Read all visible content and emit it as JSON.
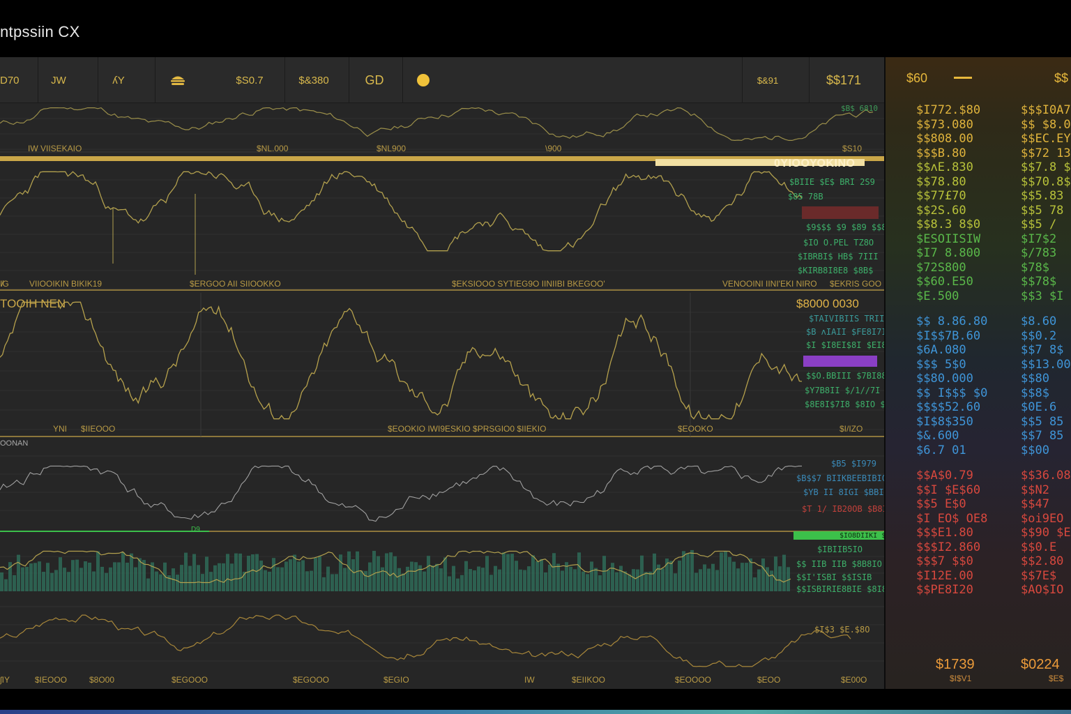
{
  "app": {
    "title": "ntpssiin CX"
  },
  "toolbar": {
    "items": [
      {
        "id": "d70",
        "label": "D70",
        "kind": "text"
      },
      {
        "id": "jw",
        "label": "JW",
        "kind": "text"
      },
      {
        "id": "ny",
        "label": "ʎY",
        "kind": "text"
      },
      {
        "id": "burger",
        "label": "",
        "kind": "icon",
        "icon": "burger-icon"
      },
      {
        "id": "p1",
        "label": "$S0.7",
        "kind": "text"
      },
      {
        "id": "p2",
        "label": "$&380",
        "kind": "text"
      },
      {
        "id": "gd",
        "label": "GD",
        "kind": "text"
      },
      {
        "id": "dot",
        "label": "",
        "kind": "icon",
        "icon": "coin-dot-icon"
      },
      {
        "id": "p3",
        "label": "$&91",
        "kind": "text"
      },
      {
        "id": "p4",
        "label": "$$171",
        "kind": "text"
      }
    ]
  },
  "panels": {
    "p1": {
      "axis_labels": [
        "IW VIISEKAIO",
        "$NL.000",
        "$NL900",
        "\\900",
        "$S10"
      ],
      "right_top": "$B$ 6810"
    },
    "p2": {
      "banner": "0ΥΙΟΟΥΟΚΙΝΟ",
      "axis_labels": [
        "I̸G",
        "VIIOOIKIN BIKIK19",
        "$ERGOO AII SIIOOKKO",
        "$EKSIOOO SYTIEG9O IINIIBI BKEGOO'",
        "VENOOINI IINI'EKI NIRO",
        "$EKRIS GOO"
      ],
      "right_lines": [
        "$BIIE $E$ BRI 2S9",
        "$85  78B",
        "$9$$$ $9 $89 $$8$",
        "$IO O.PEL TZ8O",
        "$IBRBI$ HB$ 7III",
        "$KIRB8I8E8 $8B$"
      ]
    },
    "p3": {
      "title": "TOOIH NEN",
      "price": "$8000 0030",
      "axis_labels": [
        "YNI",
        "$IIEOOO",
        "$EOOKIO IWI9ESKIO $PRSGIO0 $IIEKIO",
        "$EOOKO",
        "$I/IZO"
      ],
      "right_lines": [
        "$TAIVIBIIS TRIIS",
        "$B ʌIAII $FE8I7I8",
        "$I $I8EI$8I $EI8",
        "",
        "$$O.BBIII $7BI88",
        "$Y7B8II $/1//7I EB",
        "$8E8I$7I8 $8IO $8II"
      ]
    },
    "p4": {
      "title": "OONAN",
      "right_lines": [
        "$B5 $I979",
        "$B$$7 BIIKBEEBIBIO",
        "$YB II 8IGI $BBI",
        "$T 1/ IB20OB $B8I0"
      ],
      "marker": "D9"
    },
    "p5": {
      "badge": "$IO8DIIKI $8",
      "right_lines": [
        "$IBIIB5IO",
        "$$ IIB IIB $8B8IO",
        "$$I'ISBI $$ISIB",
        "$$ISBIRIE8BIE $8I8"
      ]
    },
    "p6": {
      "right_top": "$I$3 $E.$8O",
      "axis_labels": [
        "ʃIY",
        "$IEOOO",
        "$8O00",
        "$EGOOO",
        "$EGOOO",
        "$KI",
        "$EGIO",
        "IW",
        "$EIIKOO",
        "$EOOOO",
        "$EOO",
        "$E00O"
      ]
    }
  },
  "side_panel": {
    "header_left": "$60",
    "header_right": "$$",
    "col1": {
      "yellow": [
        "$I772.$80",
        "$$73.080",
        "$$808.00",
        "$$$B.80",
        "$$ʌE.830",
        "$$78.80",
        "$$77£70",
        "$$2S.60",
        "$$8.3 8$0",
        "$ESOIISIW",
        "$I7 8.800",
        "$72S800",
        "$$60.E50",
        "$E.500"
      ],
      "blue": [
        "$$ 8.86.80",
        "$I$$7B.60",
        "$6A.080",
        "$$$ 5$0",
        "$$80.000",
        "$$ I$$$ $0",
        "$$$$52.60",
        "$I$8$350",
        "$&.600",
        "$6.7 01"
      ],
      "red": [
        "$$A$0.79",
        "$$I $E$60",
        "$$5 E$0",
        "$I EO$ OE8",
        "$$$E1.80",
        "$$$I2.860",
        "$$$7 $$0",
        "$I12E.00",
        "$$PE8I20"
      ],
      "footer_price": "$1739",
      "footer_sub": "$I$V1"
    },
    "col2": {
      "yellow": [
        "$$$I0A7",
        "$$ $8.0",
        "$$EC.EY",
        "$$72 13",
        "$$7.8 $A",
        "$$70.8$",
        "$$5.83",
        "$$5 78",
        "$$5 /",
        "$I7$2",
        "$/783",
        "$78$",
        "$$78$",
        "$$3 $I"
      ],
      "blue": [
        "$8.60",
        "$$0.2",
        "$$7 8$",
        "$$13.00",
        "$$80",
        "$$8$",
        "$0E.6",
        "$$5 85",
        "$$7 85",
        "$$00"
      ],
      "red": [
        "$$36.08",
        "$$N2",
        "$$47",
        "$oi9EO",
        "$$90 $E",
        "$$0.E",
        "$$2.80",
        "$$7E$",
        "$AO$IO"
      ],
      "footer_price": "$0224",
      "footer_sub": "$E$"
    }
  },
  "colors": {
    "accent_gold": "#c9a648",
    "line_olive": "#9b8f4a",
    "line_gray": "#9a9a9a",
    "volume_teal": "#2f6b58",
    "green": "#3cc04a",
    "purple": "#8a3fc4",
    "red_band": "#6a2a2a"
  },
  "series": {
    "p1_seed": 11,
    "p2_seed": 23,
    "p3_seed": 37,
    "p4_seed": 41,
    "p5_seed": 53,
    "p6_seed": 67
  }
}
